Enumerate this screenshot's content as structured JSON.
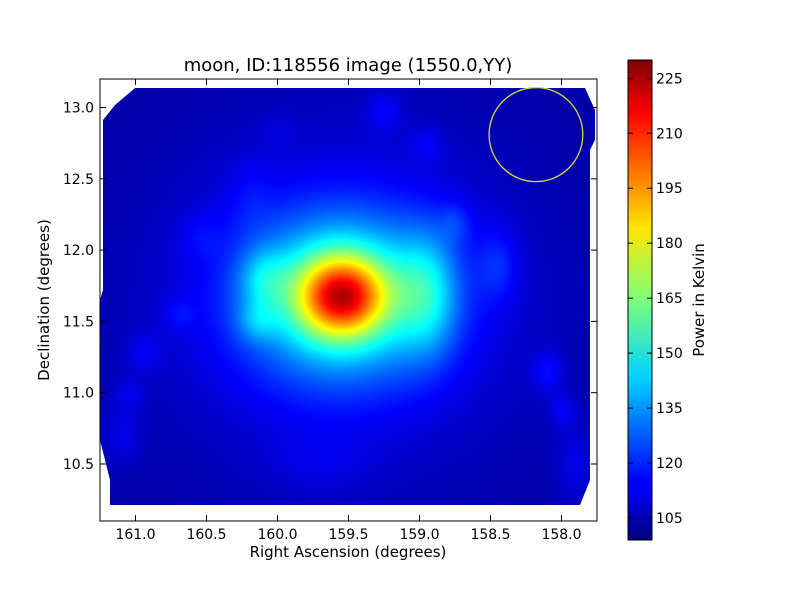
{
  "chart_data": {
    "type": "heatmap",
    "title": "moon, ID:118556 image (1550.0,YY)",
    "xlabel": "Right Ascension (degrees)",
    "ylabel": "Declination (degrees)",
    "xlim": [
      161.25,
      157.75
    ],
    "ylim": [
      10.1,
      13.2
    ],
    "x_ticks": [
      161.0,
      160.5,
      160.0,
      159.5,
      159.0,
      158.5,
      158.0
    ],
    "x_tick_labels": [
      "161.0",
      "160.5",
      "160.0",
      "159.5",
      "159.0",
      "158.5",
      "158.0"
    ],
    "y_ticks": [
      10.5,
      11.0,
      11.5,
      12.0,
      12.5,
      13.0
    ],
    "y_tick_labels": [
      "10.5",
      "11.0",
      "11.5",
      "12.0",
      "12.5",
      "13.0"
    ],
    "colorbar": {
      "label": "Power in Kelvin",
      "range": [
        99,
        230
      ],
      "ticks": [
        105,
        120,
        135,
        150,
        165,
        180,
        195,
        210,
        225
      ],
      "tick_labels": [
        "105",
        "120",
        "135",
        "150",
        "165",
        "180",
        "195",
        "210",
        "225"
      ],
      "colormap": "jet"
    },
    "background_level": 104,
    "features": [
      {
        "ra": 159.55,
        "dec": 11.68,
        "peak": 230,
        "sigma_ra": 0.22,
        "sigma_dec": 0.2
      },
      {
        "ra": 159.55,
        "dec": 11.68,
        "peak": 175,
        "sigma_ra": 0.5,
        "sigma_dec": 0.42
      },
      {
        "ra": 159.55,
        "dec": 11.65,
        "peak": 125,
        "sigma_ra": 0.85,
        "sigma_dec": 0.8
      },
      {
        "ra": 158.95,
        "dec": 11.7,
        "peak": 145,
        "sigma_ra": 0.15,
        "sigma_dec": 0.3
      },
      {
        "ra": 160.1,
        "dec": 11.8,
        "peak": 132,
        "sigma_ra": 0.12,
        "sigma_dec": 0.15
      },
      {
        "ra": 160.15,
        "dec": 11.5,
        "peak": 125,
        "sigma_ra": 0.1,
        "sigma_dec": 0.1
      },
      {
        "ra": 158.45,
        "dec": 11.9,
        "peak": 122,
        "sigma_ra": 0.1,
        "sigma_dec": 0.18
      },
      {
        "ra": 158.1,
        "dec": 11.15,
        "peak": 123,
        "sigma_ra": 0.08,
        "sigma_dec": 0.1
      },
      {
        "ra": 158.0,
        "dec": 10.88,
        "peak": 120,
        "sigma_ra": 0.07,
        "sigma_dec": 0.08
      },
      {
        "ra": 159.25,
        "dec": 12.98,
        "peak": 120,
        "sigma_ra": 0.09,
        "sigma_dec": 0.1
      },
      {
        "ra": 158.95,
        "dec": 12.75,
        "peak": 117,
        "sigma_ra": 0.08,
        "sigma_dec": 0.08
      },
      {
        "ra": 158.75,
        "dec": 12.2,
        "peak": 118,
        "sigma_ra": 0.08,
        "sigma_dec": 0.1
      },
      {
        "ra": 160.95,
        "dec": 11.28,
        "peak": 118,
        "sigma_ra": 0.09,
        "sigma_dec": 0.09
      },
      {
        "ra": 161.05,
        "dec": 11.0,
        "peak": 116,
        "sigma_ra": 0.08,
        "sigma_dec": 0.08
      },
      {
        "ra": 160.7,
        "dec": 11.55,
        "peak": 116,
        "sigma_ra": 0.08,
        "sigma_dec": 0.08
      },
      {
        "ra": 161.1,
        "dec": 10.7,
        "peak": 117,
        "sigma_ra": 0.1,
        "sigma_dec": 0.15
      },
      {
        "ra": 157.9,
        "dec": 10.5,
        "peak": 118,
        "sigma_ra": 0.1,
        "sigma_dec": 0.2
      },
      {
        "ra": 159.7,
        "dec": 10.5,
        "peak": 112,
        "sigma_ra": 0.25,
        "sigma_dec": 0.15
      },
      {
        "ra": 160.2,
        "dec": 12.4,
        "peak": 112,
        "sigma_ra": 0.12,
        "sigma_dec": 0.2
      },
      {
        "ra": 160.55,
        "dec": 12.1,
        "peak": 113,
        "sigma_ra": 0.1,
        "sigma_dec": 0.12
      },
      {
        "ra": 160.0,
        "dec": 12.85,
        "peak": 110,
        "sigma_ra": 0.08,
        "sigma_dec": 0.08
      }
    ],
    "beam_circle": {
      "ra": 158.18,
      "dec": 12.81,
      "radius_deg": 0.33,
      "color": "#d9d93a"
    },
    "grid": false,
    "legend": "none"
  }
}
